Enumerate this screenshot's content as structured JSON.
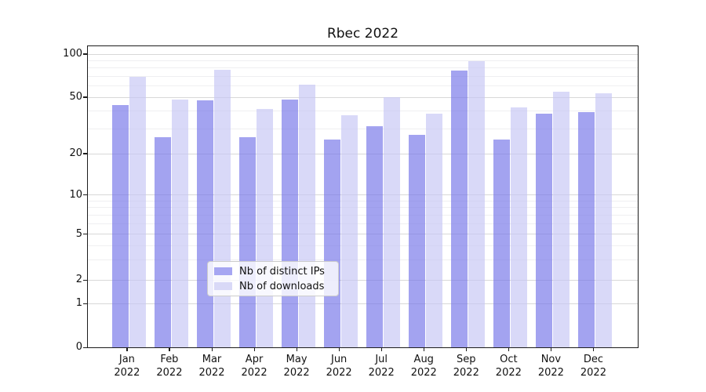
{
  "title": "Rbec 2022",
  "legend": {
    "items": [
      {
        "label": "Nb of distinct IPs",
        "color": "#a6a6f2",
        "color_rgba": "rgba(115,115,232,0.66)"
      },
      {
        "label": "Nb of downloads",
        "color": "#d9d9f7",
        "color_rgba": "rgba(198,198,244,0.66)"
      }
    ]
  },
  "chart_data": {
    "type": "bar",
    "title": "Rbec 2022",
    "categories": [
      "Jan",
      "Feb",
      "Mar",
      "Apr",
      "May",
      "Jun",
      "Jul",
      "Aug",
      "Sep",
      "Oct",
      "Nov",
      "Dec"
    ],
    "x_year": "2022",
    "series": [
      {
        "name": "Nb of distinct IPs",
        "color": "#a6a6f2",
        "color_rgba": "rgba(115,115,232,0.66)",
        "values": [
          44,
          26,
          47,
          26,
          48,
          25,
          31,
          27,
          76,
          25,
          38,
          39
        ]
      },
      {
        "name": "Nb of downloads",
        "color": "#d9d9f7",
        "color_rgba": "rgba(198,198,244,0.66)",
        "values": [
          69,
          48,
          77,
          41,
          61,
          37,
          50,
          38,
          89,
          42,
          54,
          53
        ]
      }
    ],
    "xlabel": "",
    "ylabel": "",
    "y_axis": {
      "scale": "symlog",
      "major_ticks": [
        0,
        1,
        2,
        5,
        10,
        20,
        50,
        100
      ],
      "minor_gridlines": [
        3,
        4,
        6,
        7,
        8,
        9,
        30,
        40,
        60,
        70,
        80,
        90
      ],
      "ylim": [
        0,
        110
      ]
    },
    "grid": true,
    "legend_position": "lower center"
  },
  "colors": {
    "background": "#ffffff",
    "spine": "#1c1c1c",
    "major_grid": "#d8d8d8",
    "minor_grid": "#efeff1",
    "text": "#111111"
  }
}
